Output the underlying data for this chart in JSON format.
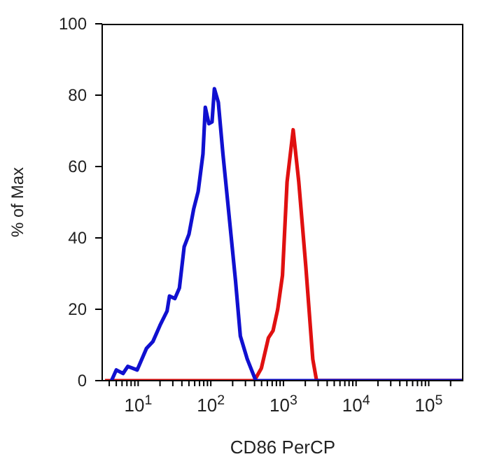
{
  "chart_data": {
    "type": "line",
    "xlabel": "CD86 PerCP",
    "ylabel": "% of Max",
    "log": "x",
    "xlim": [
      3.2,
      300000
    ],
    "ylim": [
      0,
      100
    ],
    "yticks": [
      0,
      20,
      40,
      60,
      80,
      100
    ],
    "xticks": [
      {
        "value": 4,
        "label": null
      },
      {
        "value": 5,
        "label": null
      },
      {
        "value": 6,
        "label": null
      },
      {
        "value": 7,
        "label": null
      },
      {
        "value": 8,
        "label": null
      },
      {
        "value": 9,
        "label": null
      },
      {
        "value": 10,
        "label": "10$^{1}$"
      },
      {
        "value": 20,
        "label": null
      },
      {
        "value": 30,
        "label": null
      },
      {
        "value": 40,
        "label": null
      },
      {
        "value": 50,
        "label": null
      },
      {
        "value": 60,
        "label": null
      },
      {
        "value": 70,
        "label": null
      },
      {
        "value": 80,
        "label": null
      },
      {
        "value": 90,
        "label": null
      },
      {
        "value": 100,
        "label": "10$^{2}$"
      },
      {
        "value": 200,
        "label": null
      },
      {
        "value": 300,
        "label": null
      },
      {
        "value": 400,
        "label": null
      },
      {
        "value": 500,
        "label": null
      },
      {
        "value": 600,
        "label": null
      },
      {
        "value": 700,
        "label": null
      },
      {
        "value": 800,
        "label": null
      },
      {
        "value": 900,
        "label": null
      },
      {
        "value": 1000,
        "label": "10$^{3}$"
      },
      {
        "value": 2000,
        "label": null
      },
      {
        "value": 3000,
        "label": null
      },
      {
        "value": 4000,
        "label": null
      },
      {
        "value": 5000,
        "label": null
      },
      {
        "value": 6000,
        "label": null
      },
      {
        "value": 7000,
        "label": null
      },
      {
        "value": 8000,
        "label": null
      },
      {
        "value": 9000,
        "label": null
      },
      {
        "value": 10000,
        "label": "10$^{4}$"
      },
      {
        "value": 20000,
        "label": null
      },
      {
        "value": 30000,
        "label": null
      },
      {
        "value": 40000,
        "label": null
      },
      {
        "value": 50000,
        "label": null
      },
      {
        "value": 60000,
        "label": null
      },
      {
        "value": 70000,
        "label": null
      },
      {
        "value": 80000,
        "label": null
      },
      {
        "value": 90000,
        "label": null
      },
      {
        "value": 100000,
        "label": "10$^{5}$"
      },
      {
        "value": 200000,
        "label": null
      }
    ],
    "series": [
      {
        "color": "#e01010",
        "x": [
          3.5,
          398,
          497,
          621,
          719,
          834,
          970,
          1122,
          1361,
          1626,
          2032,
          2535,
          2858,
          300000
        ],
        "values": [
          0,
          0,
          3.5,
          12,
          14,
          20,
          29.5,
          55.7,
          70.3,
          55.7,
          32,
          6,
          0,
          0
        ]
      },
      {
        "color": "#1010d0",
        "x": [
          4.3,
          5.0,
          6.2,
          7.2,
          9.7,
          13,
          16,
          20,
          25,
          27,
          32,
          37,
          43,
          50,
          58,
          67,
          78,
          84,
          94,
          104,
          112,
          127,
          147,
          175,
          219,
          255,
          318,
          416,
          300000
        ],
        "values": [
          0,
          3,
          2,
          4,
          3,
          9,
          11,
          15.5,
          19.5,
          23.7,
          23,
          26,
          37.5,
          41,
          48,
          53,
          63.5,
          76.6,
          72,
          72.5,
          81.8,
          78,
          63.5,
          48,
          28,
          12.5,
          6,
          0,
          0
        ]
      }
    ]
  }
}
